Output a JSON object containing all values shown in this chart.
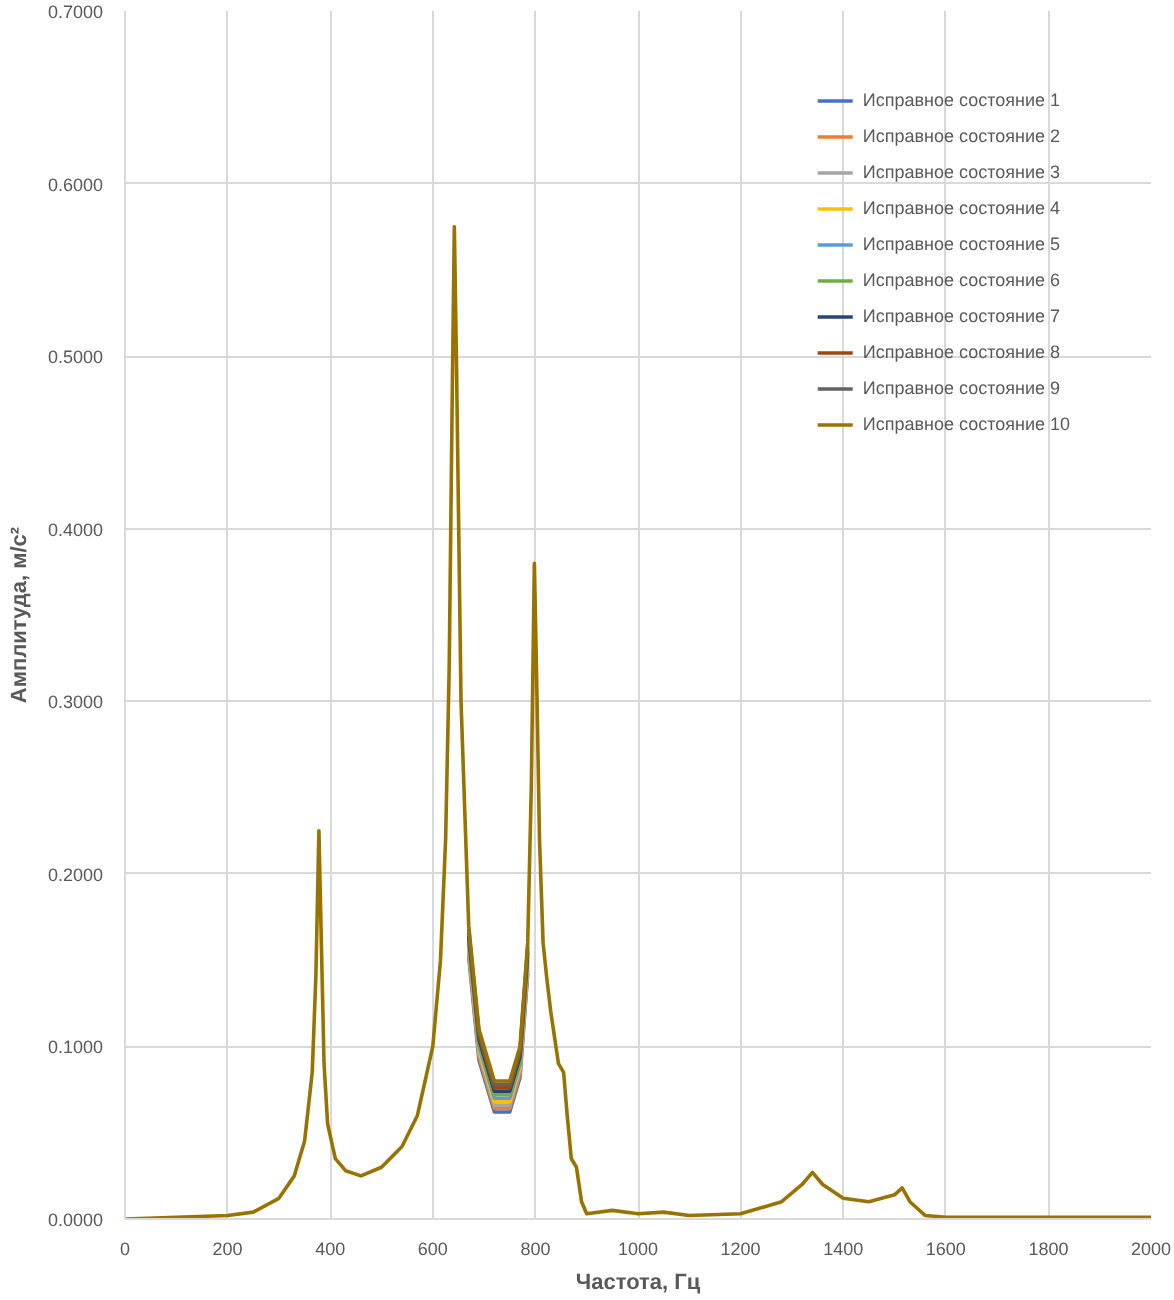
{
  "chart_data": {
    "type": "line",
    "xlabel": "Частота, Гц",
    "ylabel": "Амплитуда, м/с²",
    "xlim": [
      0,
      2000
    ],
    "xticks": [
      0,
      200,
      400,
      600,
      800,
      1000,
      1200,
      1400,
      1600,
      1800,
      2000
    ],
    "ylim": [
      0,
      0.7
    ],
    "yticks": [
      {
        "value": 0,
        "label": "0.0000"
      },
      {
        "value": 0.1,
        "label": "0.1000"
      },
      {
        "value": 0.2,
        "label": "0.2000"
      },
      {
        "value": 0.3,
        "label": "0.3000"
      },
      {
        "value": 0.4,
        "label": "0.4000"
      },
      {
        "value": 0.5,
        "label": "0.5000"
      },
      {
        "value": 0.6,
        "label": "0.6000"
      },
      {
        "value": 0.7,
        "label": "0.7000"
      }
    ],
    "grid": true,
    "legend": "top right",
    "line_style": "solid",
    "marker": "none",
    "x": [
      0,
      100,
      200,
      250,
      300,
      330,
      350,
      365,
      372,
      378,
      382,
      388,
      395,
      410,
      430,
      460,
      500,
      540,
      570,
      600,
      615,
      625,
      632,
      638,
      642,
      646,
      655,
      670,
      690,
      720,
      750,
      770,
      785,
      792,
      798,
      802,
      808,
      815,
      822,
      830,
      845,
      855,
      862,
      870,
      880,
      890,
      900,
      950,
      1000,
      1050,
      1100,
      1200,
      1280,
      1320,
      1340,
      1360,
      1400,
      1450,
      1500,
      1515,
      1530,
      1560,
      1600,
      2000
    ],
    "series": [
      {
        "name": "Исправное состояние 1",
        "color": "#4472c4",
        "x": [
          670,
          690,
          720,
          750,
          770,
          785
        ],
        "values": [
          0.152,
          0.092,
          0.062,
          0.062,
          0.082,
          0.142
        ]
      },
      {
        "name": "Исправное состояние 2",
        "color": "#ed7d31",
        "x": [
          670,
          690,
          720,
          750,
          770,
          785
        ],
        "values": [
          0.154,
          0.094,
          0.064,
          0.064,
          0.084,
          0.144
        ]
      },
      {
        "name": "Исправное состояние 3",
        "color": "#a5a5a5",
        "x": [
          670,
          690,
          720,
          750,
          770,
          785
        ],
        "values": [
          0.156,
          0.096,
          0.066,
          0.066,
          0.086,
          0.146
        ]
      },
      {
        "name": "Исправное состояние 4",
        "color": "#ffc000",
        "x": [
          670,
          690,
          720,
          750,
          770,
          785
        ],
        "values": [
          0.158,
          0.098,
          0.068,
          0.068,
          0.088,
          0.148
        ]
      },
      {
        "name": "Исправное состояние 5",
        "color": "#5b9bd5",
        "x": [
          670,
          690,
          720,
          750,
          770,
          785
        ],
        "values": [
          0.16,
          0.1,
          0.07,
          0.07,
          0.09,
          0.15
        ]
      },
      {
        "name": "Исправное состояние 6",
        "color": "#70ad47",
        "x": [
          670,
          690,
          720,
          750,
          770,
          785
        ],
        "values": [
          0.162,
          0.102,
          0.072,
          0.072,
          0.092,
          0.152
        ]
      },
      {
        "name": "Исправное состояние 7",
        "color": "#264478",
        "x": [
          670,
          690,
          720,
          750,
          770,
          785
        ],
        "values": [
          0.164,
          0.104,
          0.074,
          0.074,
          0.094,
          0.154
        ]
      },
      {
        "name": "Исправное состояние 8",
        "color": "#9e480e",
        "x": [
          670,
          690,
          720,
          750,
          770,
          785
        ],
        "values": [
          0.166,
          0.106,
          0.076,
          0.076,
          0.096,
          0.156
        ]
      },
      {
        "name": "Исправное состояние 9",
        "color": "#636363",
        "x": [
          670,
          690,
          720,
          750,
          770,
          785
        ],
        "values": [
          0.168,
          0.108,
          0.078,
          0.078,
          0.098,
          0.158
        ]
      },
      {
        "name": "Исправное состояние 10",
        "color": "#997300",
        "values": [
          0,
          0.001,
          0.002,
          0.004,
          0.012,
          0.025,
          0.045,
          0.085,
          0.14,
          0.225,
          0.17,
          0.09,
          0.055,
          0.035,
          0.028,
          0.025,
          0.03,
          0.042,
          0.06,
          0.1,
          0.15,
          0.22,
          0.32,
          0.48,
          0.575,
          0.5,
          0.3,
          0.17,
          0.11,
          0.08,
          0.08,
          0.1,
          0.16,
          0.25,
          0.38,
          0.32,
          0.22,
          0.16,
          0.14,
          0.12,
          0.09,
          0.085,
          0.06,
          0.035,
          0.03,
          0.01,
          0.003,
          0.005,
          0.003,
          0.004,
          0.002,
          0.003,
          0.01,
          0.02,
          0.027,
          0.02,
          0.012,
          0.01,
          0.014,
          0.018,
          0.01,
          0.002,
          0.001,
          0.001
        ]
      }
    ]
  }
}
